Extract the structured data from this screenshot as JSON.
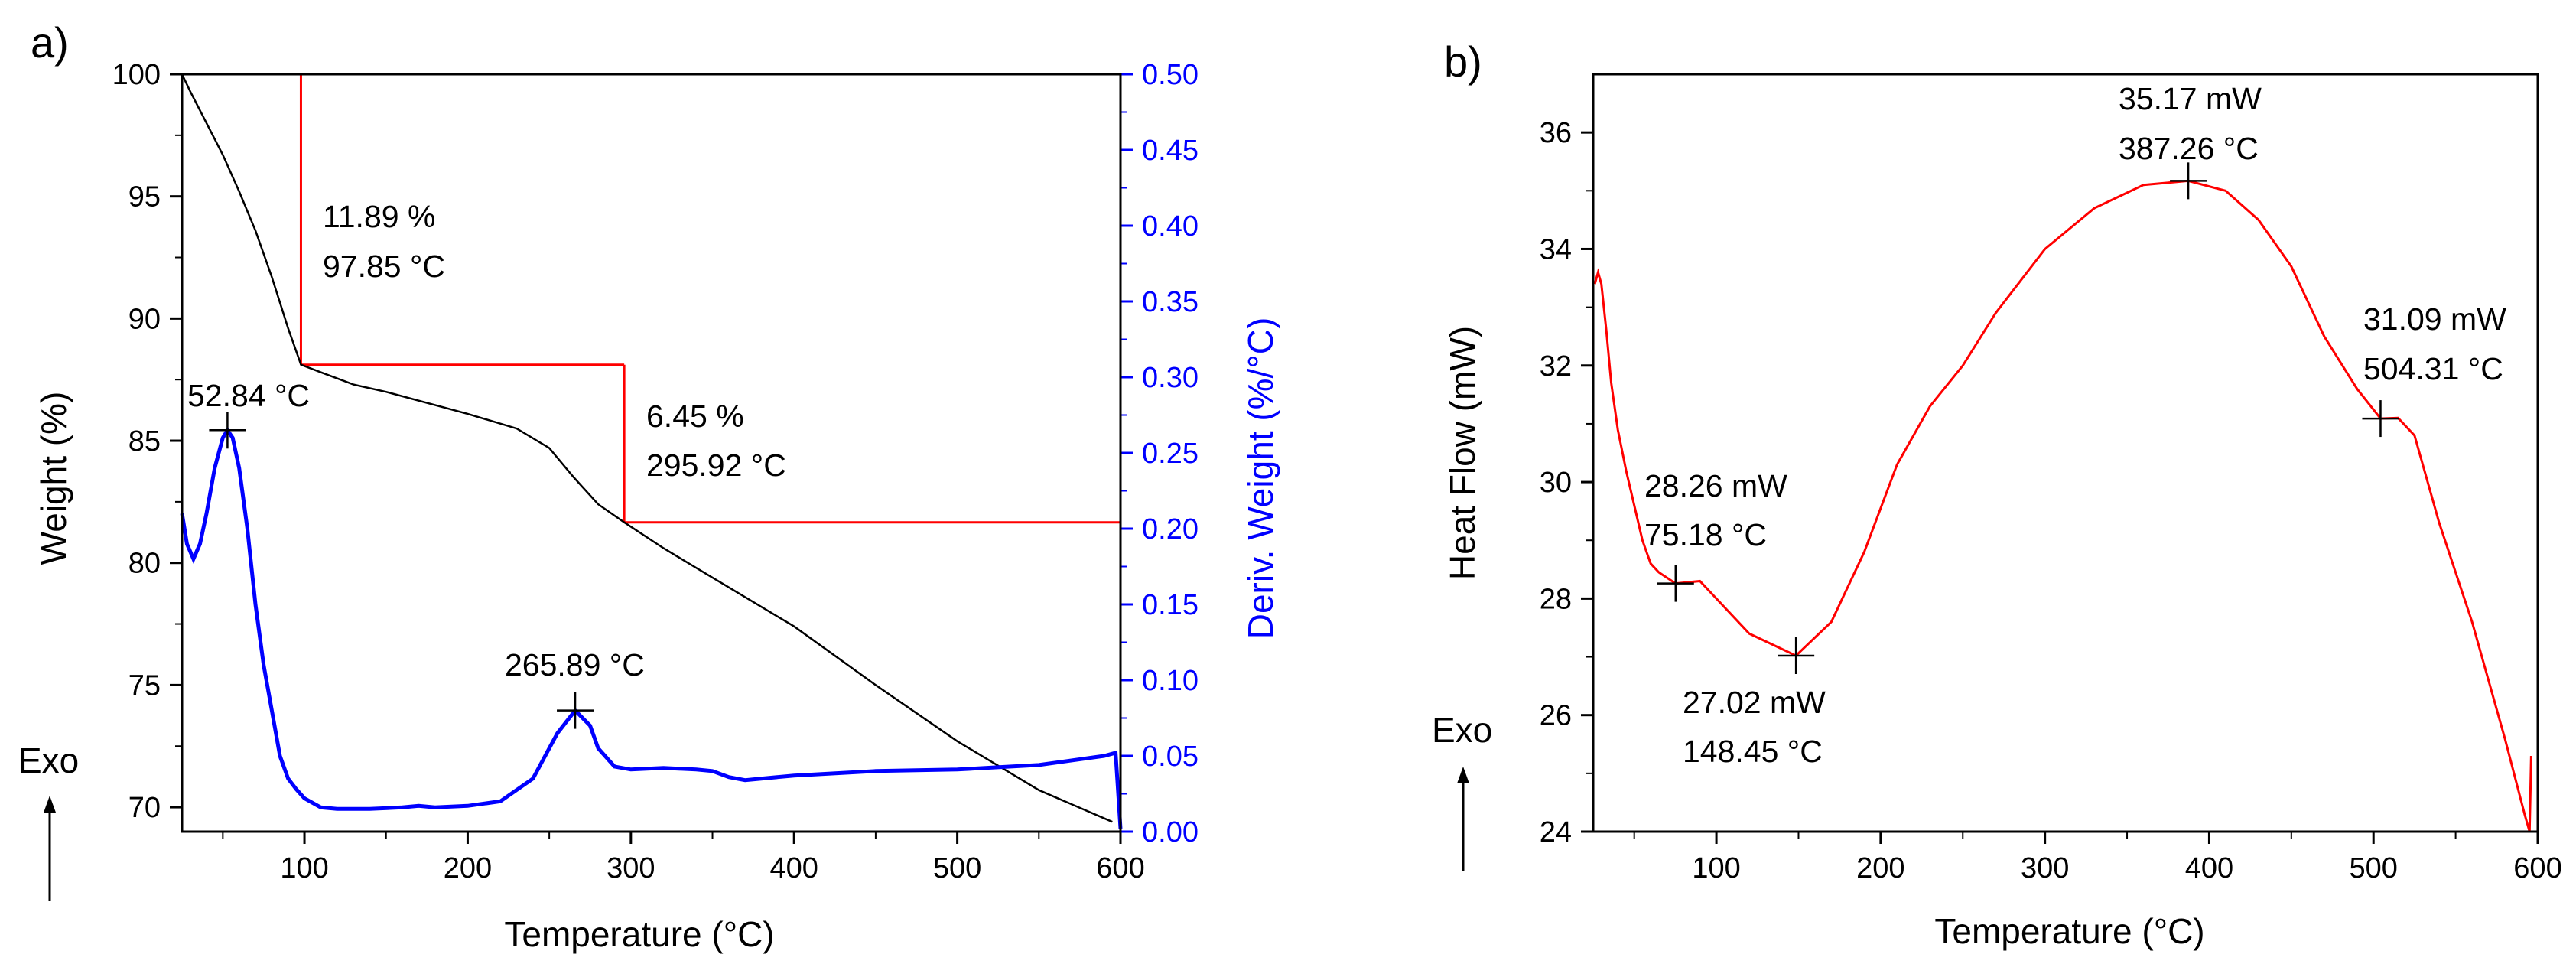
{
  "chart_data": [
    {
      "type": "line",
      "panel_label": "a)",
      "xlabel": "Temperature (°C)",
      "ylabel": "Weight (%)",
      "y2label": "Deriv. Weight (%/°C)",
      "exo_label": "Exo",
      "xlim": [
        25,
        600
      ],
      "ylim": [
        69,
        100
      ],
      "y2lim": [
        0,
        0.5
      ],
      "xticks": [
        100,
        200,
        300,
        400,
        500,
        600
      ],
      "yticks": [
        70,
        75,
        80,
        85,
        90,
        95,
        100
      ],
      "y2ticks": [
        "0.00",
        "0.05",
        "0.10",
        "0.15",
        "0.20",
        "0.25",
        "0.30",
        "0.35",
        "0.40",
        "0.45",
        "0.50"
      ],
      "colors": {
        "weight": "#000000",
        "deriv": "#0000ff",
        "steps": "#ff0000",
        "y2axis": "#0000ff"
      },
      "series": [
        {
          "name": "Weight",
          "axis": "left",
          "x": [
            25,
            30,
            40,
            50,
            60,
            70,
            80,
            90,
            97.85,
            110,
            130,
            150,
            200,
            230,
            250,
            265,
            280,
            295.92,
            320,
            350,
            400,
            450,
            500,
            550,
            595
          ],
          "y": [
            100,
            99.3,
            98,
            96.7,
            95.2,
            93.6,
            91.7,
            89.6,
            88.11,
            87.8,
            87.3,
            87.0,
            86.1,
            85.5,
            84.7,
            83.5,
            82.4,
            81.66,
            80.6,
            79.4,
            77.4,
            75.0,
            72.7,
            70.7,
            69.4
          ]
        },
        {
          "name": "Deriv. Weight",
          "axis": "right",
          "x": [
            25,
            28,
            32,
            36,
            40,
            45,
            50,
            52.84,
            56,
            60,
            65,
            70,
            75,
            80,
            85,
            90,
            95,
            100,
            110,
            120,
            140,
            160,
            170,
            180,
            200,
            220,
            240,
            250,
            255,
            265.89,
            275,
            280,
            290,
            300,
            320,
            340,
            350,
            360,
            370,
            400,
            450,
            500,
            550,
            590,
            597,
            600
          ],
          "y": [
            0.21,
            0.19,
            0.18,
            0.19,
            0.21,
            0.24,
            0.26,
            0.265,
            0.26,
            0.24,
            0.2,
            0.15,
            0.11,
            0.08,
            0.05,
            0.035,
            0.028,
            0.022,
            0.016,
            0.015,
            0.015,
            0.016,
            0.017,
            0.016,
            0.017,
            0.02,
            0.035,
            0.055,
            0.065,
            0.08,
            0.07,
            0.055,
            0.043,
            0.041,
            0.042,
            0.041,
            0.04,
            0.036,
            0.034,
            0.037,
            0.04,
            0.041,
            0.044,
            0.05,
            0.052,
            0.002
          ]
        }
      ],
      "steps": [
        {
          "from_temp": 97.85,
          "to_temp": 295.92,
          "weight_start": 100,
          "weight_end": 88.11,
          "loss_label": "11.89 %",
          "temp_label": "97.85 °C"
        },
        {
          "from_temp": 295.92,
          "to_temp": 600,
          "weight_start": 88.11,
          "weight_end": 81.66,
          "loss_label": "6.45 %",
          "temp_label": "295.92 °C"
        }
      ],
      "peaks": [
        {
          "x": 52.84,
          "y2": 0.265,
          "label": "52.84 °C"
        },
        {
          "x": 265.89,
          "y2": 0.08,
          "label": "265.89 °C"
        }
      ]
    },
    {
      "type": "line",
      "panel_label": "b)",
      "xlabel": "Temperature (°C)",
      "ylabel": "Heat Flow (mW)",
      "exo_label": "Exo",
      "xlim": [
        25,
        600
      ],
      "ylim": [
        24,
        37
      ],
      "xticks": [
        100,
        200,
        300,
        400,
        500,
        600
      ],
      "yticks": [
        24,
        26,
        28,
        30,
        32,
        34,
        36
      ],
      "colors": {
        "heat_flow": "#ff0000"
      },
      "series": [
        {
          "name": "Heat Flow",
          "x": [
            26,
            28,
            30,
            33,
            36,
            40,
            45,
            50,
            55,
            60,
            65,
            75.18,
            90,
            100,
            120,
            148.45,
            170,
            190,
            210,
            230,
            250,
            270,
            300,
            330,
            360,
            387.26,
            410,
            430,
            450,
            470,
            490,
            504.31,
            515,
            525,
            540,
            560,
            580,
            592,
            595,
            596
          ],
          "y": [
            33.4,
            33.6,
            33.4,
            32.6,
            31.7,
            30.9,
            30.2,
            29.6,
            29.0,
            28.6,
            28.45,
            28.26,
            28.3,
            28.0,
            27.4,
            27.02,
            27.6,
            28.8,
            30.3,
            31.3,
            32.0,
            32.9,
            34.0,
            34.7,
            35.1,
            35.17,
            35.0,
            34.5,
            33.7,
            32.5,
            31.6,
            31.09,
            31.1,
            30.8,
            29.3,
            27.6,
            25.6,
            24.3,
            24.0,
            25.3
          ]
        }
      ],
      "annotations": [
        {
          "x": 75.18,
          "y": 28.26,
          "line1": "28.26 mW",
          "line2": "75.18 °C"
        },
        {
          "x": 148.45,
          "y": 27.02,
          "line1": "27.02 mW",
          "line2": "148.45 °C"
        },
        {
          "x": 387.26,
          "y": 35.17,
          "line1": "35.17 mW",
          "line2": "387.26 °C"
        },
        {
          "x": 504.31,
          "y": 31.09,
          "line1": "31.09 mW",
          "line2": "504.31 °C"
        }
      ]
    }
  ]
}
